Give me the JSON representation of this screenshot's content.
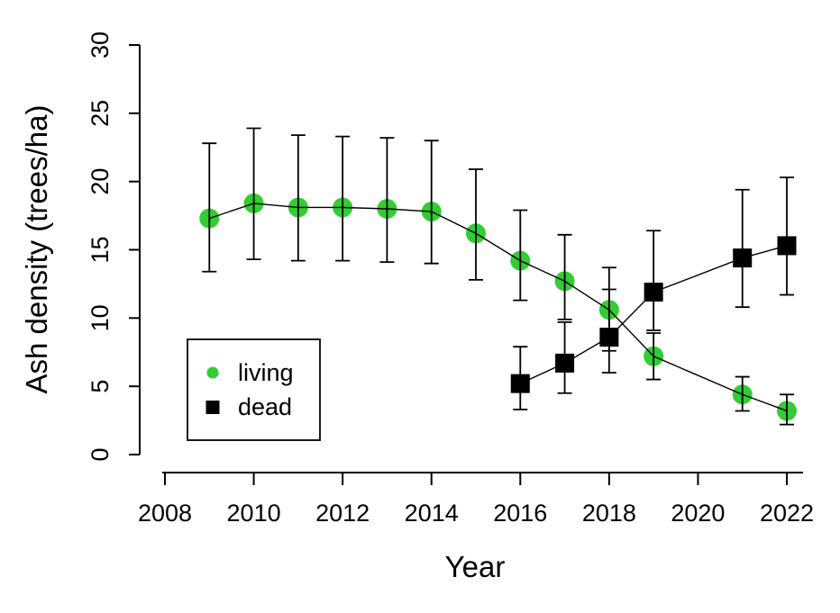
{
  "figure": {
    "background": "#ffffff",
    "foreground": "#000000"
  },
  "chart_data": {
    "type": "line",
    "xlabel": "Year",
    "ylabel": "Ash density (trees/ha)",
    "xlim": [
      2008,
      2022
    ],
    "ylim": [
      0,
      30
    ],
    "x_ticks": [
      2008,
      2010,
      2012,
      2014,
      2016,
      2018,
      2020,
      2022
    ],
    "y_ticks": [
      0,
      5,
      10,
      15,
      20,
      25,
      30
    ],
    "grid": false,
    "error_bars": true,
    "legend": {
      "position": "inside-bottom-left",
      "border": true,
      "entries": [
        {
          "label": "living",
          "marker": "circle",
          "color": "#32CD32"
        },
        {
          "label": "dead",
          "marker": "square",
          "color": "#000000"
        }
      ]
    },
    "series": [
      {
        "name": "living",
        "marker": "circle",
        "color": "#32CD32",
        "line_color": "#000000",
        "points": [
          {
            "x": 2009,
            "y": 17.3,
            "lo": 13.4,
            "hi": 22.8
          },
          {
            "x": 2010,
            "y": 18.4,
            "lo": 14.3,
            "hi": 23.9
          },
          {
            "x": 2011,
            "y": 18.1,
            "lo": 14.2,
            "hi": 23.4
          },
          {
            "x": 2012,
            "y": 18.1,
            "lo": 14.2,
            "hi": 23.3
          },
          {
            "x": 2013,
            "y": 18.0,
            "lo": 14.1,
            "hi": 23.2
          },
          {
            "x": 2014,
            "y": 17.8,
            "lo": 14.0,
            "hi": 23.0
          },
          {
            "x": 2015,
            "y": 16.2,
            "lo": 12.8,
            "hi": 20.9
          },
          {
            "x": 2016,
            "y": 14.2,
            "lo": 11.3,
            "hi": 17.9
          },
          {
            "x": 2017,
            "y": 12.7,
            "lo": 9.9,
            "hi": 16.1
          },
          {
            "x": 2018,
            "y": 10.6,
            "lo": 7.6,
            "hi": 13.7
          },
          {
            "x": 2019,
            "y": 7.2,
            "lo": 5.5,
            "hi": 8.9
          },
          {
            "x": 2021,
            "y": 4.4,
            "lo": 3.2,
            "hi": 5.7
          },
          {
            "x": 2022,
            "y": 3.2,
            "lo": 2.2,
            "hi": 4.4
          }
        ]
      },
      {
        "name": "dead",
        "marker": "square",
        "color": "#000000",
        "line_color": "#000000",
        "points": [
          {
            "x": 2016,
            "y": 5.2,
            "lo": 3.3,
            "hi": 7.9
          },
          {
            "x": 2017,
            "y": 6.7,
            "lo": 4.5,
            "hi": 9.7
          },
          {
            "x": 2018,
            "y": 8.6,
            "lo": 6.0,
            "hi": 12.1
          },
          {
            "x": 2019,
            "y": 11.9,
            "lo": 9.1,
            "hi": 16.4
          },
          {
            "x": 2021,
            "y": 14.4,
            "lo": 10.8,
            "hi": 19.4
          },
          {
            "x": 2022,
            "y": 15.3,
            "lo": 11.7,
            "hi": 20.3
          }
        ]
      }
    ]
  }
}
